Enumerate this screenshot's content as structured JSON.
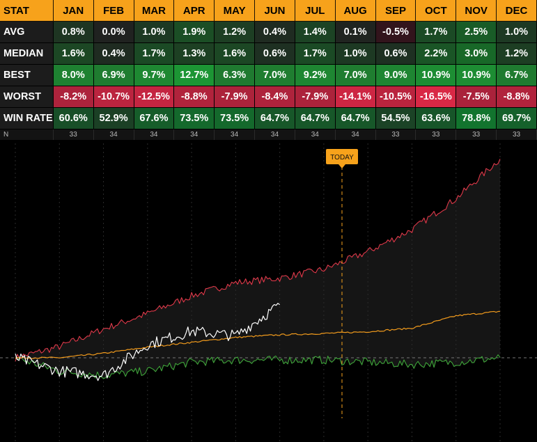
{
  "chart_data": {
    "type": "table",
    "columns": [
      "STAT",
      "JAN",
      "FEB",
      "MAR",
      "APR",
      "MAY",
      "JUN",
      "JUL",
      "AUG",
      "SEP",
      "OCT",
      "NOV",
      "DEC"
    ],
    "rows": [
      {
        "label": "AVG",
        "values": [
          "0.8%",
          "0.0%",
          "1.0%",
          "1.9%",
          "1.2%",
          "0.4%",
          "1.4%",
          "0.1%",
          "-0.5%",
          "1.7%",
          "2.5%",
          "1.0%"
        ]
      },
      {
        "label": "MEDIAN",
        "values": [
          "1.6%",
          "0.4%",
          "1.7%",
          "1.3%",
          "1.6%",
          "0.6%",
          "1.7%",
          "1.0%",
          "0.6%",
          "2.2%",
          "3.0%",
          "1.2%"
        ]
      },
      {
        "label": "BEST",
        "values": [
          "8.0%",
          "6.9%",
          "9.7%",
          "12.7%",
          "6.3%",
          "7.0%",
          "9.2%",
          "7.0%",
          "9.0%",
          "10.9%",
          "10.9%",
          "6.7%"
        ]
      },
      {
        "label": "WORST",
        "values": [
          "-8.2%",
          "-10.7%",
          "-12.5%",
          "-8.8%",
          "-7.9%",
          "-8.4%",
          "-7.9%",
          "-14.1%",
          "-10.5%",
          "-16.5%",
          "-7.5%",
          "-8.8%"
        ]
      },
      {
        "label": "WIN RATE",
        "values": [
          "60.6%",
          "52.9%",
          "67.6%",
          "73.5%",
          "73.5%",
          "64.7%",
          "64.7%",
          "64.7%",
          "54.5%",
          "63.6%",
          "78.8%",
          "69.7%"
        ]
      }
    ],
    "n_row": {
      "label": "N",
      "values": [
        "33",
        "34",
        "34",
        "34",
        "34",
        "34",
        "34",
        "34",
        "33",
        "33",
        "33",
        "33"
      ]
    },
    "line_chart": {
      "type": "line",
      "today_label": "TODAY",
      "x": [
        "JAN",
        "FEB",
        "MAR",
        "APR",
        "MAY",
        "JUN",
        "JUL",
        "AUG",
        "SEP",
        "OCT",
        "NOV",
        "DEC"
      ],
      "series": [
        {
          "key": "best",
          "values": [
            0,
            2.5,
            6.5,
            10,
            14,
            17,
            18,
            20,
            24,
            29,
            36,
            45
          ],
          "color": "#e0394a"
        },
        {
          "key": "average",
          "values": [
            0,
            0,
            1,
            2.4,
            3.5,
            4.6,
            5.2,
            5.5,
            5.9,
            6.7,
            9.5,
            10.5
          ],
          "color": "#f29b1c"
        },
        {
          "key": "worst",
          "values": [
            0,
            -3,
            -4,
            -3,
            -1,
            -0.5,
            -0.5,
            -0.5,
            -1,
            -1.5,
            -1,
            0
          ],
          "color": "#3fa63a"
        },
        {
          "key": "current",
          "values": [
            0,
            -3,
            -4,
            3,
            6,
            5,
            12
          ],
          "color": "#ffffff"
        }
      ]
    }
  },
  "colors": {
    "header": "#f7a21b",
    "best": "#e0394a",
    "avg": "#f29b1c",
    "worst": "#3fa63a",
    "current": "#ffffff"
  }
}
